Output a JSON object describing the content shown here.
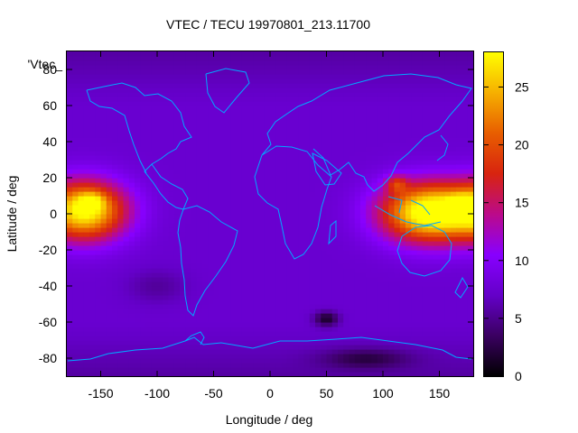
{
  "chart_data": {
    "type": "heatmap",
    "title": "VTEC / TECU 19970801_213.11700",
    "xlabel": "Longitude / deg",
    "ylabel": "Latitude / deg",
    "xlim": [
      -180,
      180
    ],
    "ylim": [
      -90,
      90
    ],
    "x_ticks": [
      -150,
      -100,
      -50,
      0,
      50,
      100,
      150
    ],
    "y_ticks": [
      -80,
      -60,
      -40,
      -20,
      0,
      20,
      40,
      60,
      80
    ],
    "legend_label": "'Vtec_",
    "colorbar": {
      "range": [
        0,
        28
      ],
      "ticks": [
        0,
        5,
        10,
        15,
        20,
        25
      ],
      "palette": [
        "#000000",
        "#3a0060",
        "#6400c8",
        "#8800ff",
        "#bb0a8a",
        "#d8240f",
        "#e85e00",
        "#f6b000",
        "#ffff00"
      ]
    },
    "background_level": 7.5,
    "features": [
      {
        "name": "equatorial anomaly west",
        "lon": -165,
        "lat": 2,
        "lon_width": 55,
        "lat_width": 24,
        "value": 21
      },
      {
        "name": "equatorial anomaly wrap",
        "lon": 200,
        "lat": 2,
        "lon_width": 55,
        "lat_width": 24,
        "value": 21
      },
      {
        "name": "equatorial anomaly east",
        "lon": 140,
        "lat": 1,
        "lon_width": 62,
        "lat_width": 24,
        "value": 22
      },
      {
        "name": "peak west",
        "lon": -158,
        "lat": 7,
        "lon_width": 16,
        "lat_width": 7,
        "value": 6
      },
      {
        "name": "peak east 1",
        "lon": 112,
        "lat": 17,
        "lon_width": 14,
        "lat_width": 7,
        "value": 7
      },
      {
        "name": "peak east 2",
        "lon": 170,
        "lat": 5,
        "lon_width": 16,
        "lat_width": 8,
        "value": 6
      },
      {
        "name": "southern low 1",
        "lon": 50,
        "lat": -58,
        "lon_width": 16,
        "lat_width": 6,
        "value": -6
      },
      {
        "name": "antarctic low",
        "lon": 85,
        "lat": -80,
        "lon_width": 55,
        "lat_width": 8,
        "value": -4
      },
      {
        "name": "pacific low",
        "lon": -100,
        "lat": -40,
        "lon_width": 40,
        "lat_width": 14,
        "value": -2
      }
    ],
    "map_overlay_color": "#00a8ff",
    "grid": false,
    "legend_position": "top-left"
  }
}
